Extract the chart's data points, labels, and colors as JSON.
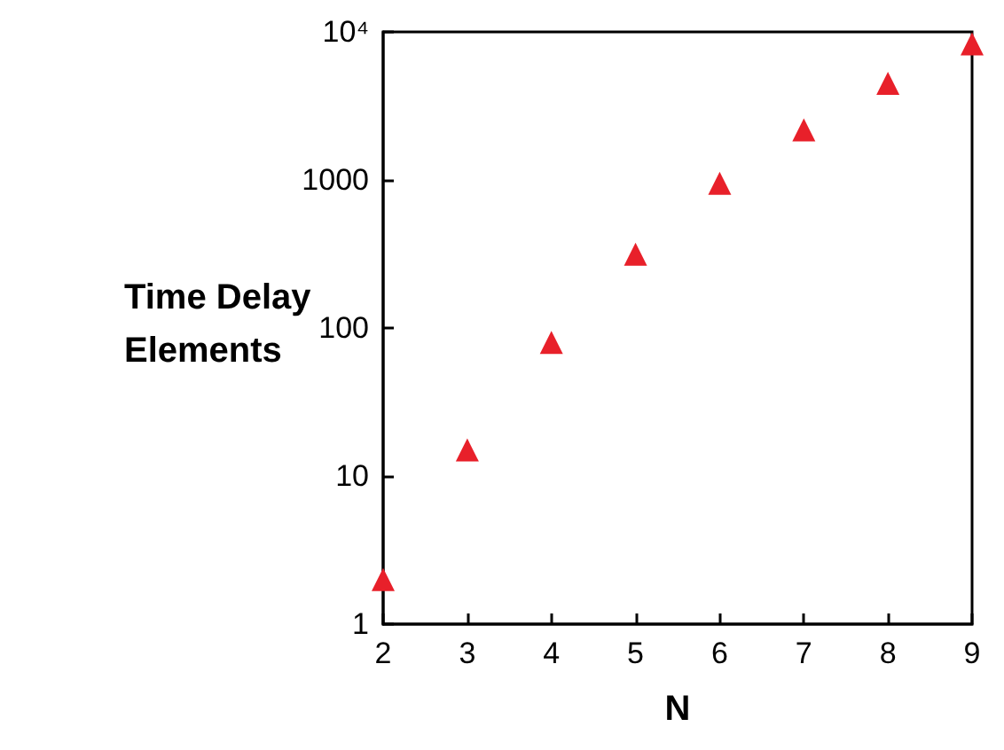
{
  "chart_data": {
    "type": "scatter",
    "xlabel": "N",
    "ylabel": "Time Delay Elements",
    "x": [
      2,
      3,
      4,
      5,
      6,
      7,
      8,
      9
    ],
    "series": [
      {
        "color": "#e8202a",
        "values": [
          2,
          15,
          80,
          315,
          950,
          2180,
          4500,
          8300
        ]
      }
    ],
    "xlim": [
      2,
      9
    ],
    "xticks": [
      2,
      3,
      4,
      5,
      6,
      7,
      8,
      9
    ],
    "ylim": [
      1,
      10000
    ],
    "yticks": [
      1,
      10,
      100,
      1000,
      {
        "value": 10000,
        "label": "10⁴"
      }
    ],
    "log": "y",
    "grid": false,
    "marker": "triangle"
  }
}
